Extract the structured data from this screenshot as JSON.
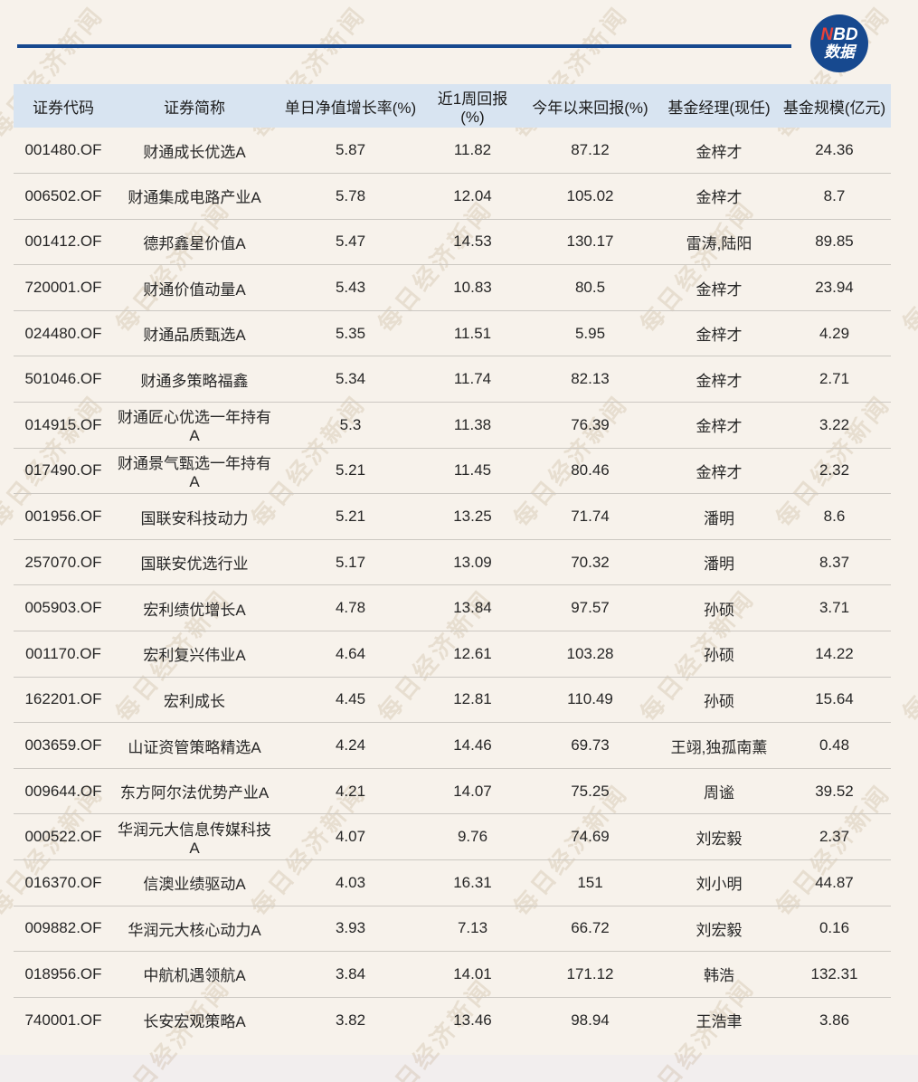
{
  "logo": {
    "nbd_n": "N",
    "nbd_bd": "BD",
    "line2": "数据"
  },
  "watermark": {
    "text": "每日经济新闻"
  },
  "colors": {
    "page_background": "#f7f2eb",
    "header_background": "#d8e4f1",
    "accent_blue": "#17498f",
    "logo_red": "#e8413a",
    "separator": "#ccc8c2",
    "text": "#262626"
  },
  "chart_data": {
    "type": "table",
    "title": "",
    "columns": [
      "证券代码",
      "证券简称",
      "单日净值增长率(%)",
      "近1周回报(%)",
      "今年以来回报(%)",
      "基金经理(现任)",
      "基金规模(亿元)"
    ],
    "rows": [
      [
        "001480.OF",
        "财通成长优选A",
        "5.87",
        "11.82",
        "87.12",
        "金梓才",
        "24.36"
      ],
      [
        "006502.OF",
        "财通集成电路产业A",
        "5.78",
        "12.04",
        "105.02",
        "金梓才",
        "8.7"
      ],
      [
        "001412.OF",
        "德邦鑫星价值A",
        "5.47",
        "14.53",
        "130.17",
        "雷涛,陆阳",
        "89.85"
      ],
      [
        "720001.OF",
        "财通价值动量A",
        "5.43",
        "10.83",
        "80.5",
        "金梓才",
        "23.94"
      ],
      [
        "024480.OF",
        "财通品质甄选A",
        "5.35",
        "11.51",
        "5.95",
        "金梓才",
        "4.29"
      ],
      [
        "501046.OF",
        "财通多策略福鑫",
        "5.34",
        "11.74",
        "82.13",
        "金梓才",
        "2.71"
      ],
      [
        "014915.OF",
        "财通匠心优选一年持有A",
        "5.3",
        "11.38",
        "76.39",
        "金梓才",
        "3.22"
      ],
      [
        "017490.OF",
        "财通景气甄选一年持有A",
        "5.21",
        "11.45",
        "80.46",
        "金梓才",
        "2.32"
      ],
      [
        "001956.OF",
        "国联安科技动力",
        "5.21",
        "13.25",
        "71.74",
        "潘明",
        "8.6"
      ],
      [
        "257070.OF",
        "国联安优选行业",
        "5.17",
        "13.09",
        "70.32",
        "潘明",
        "8.37"
      ],
      [
        "005903.OF",
        "宏利绩优增长A",
        "4.78",
        "13.84",
        "97.57",
        "孙硕",
        "3.71"
      ],
      [
        "001170.OF",
        "宏利复兴伟业A",
        "4.64",
        "12.61",
        "103.28",
        "孙硕",
        "14.22"
      ],
      [
        "162201.OF",
        "宏利成长",
        "4.45",
        "12.81",
        "110.49",
        "孙硕",
        "15.64"
      ],
      [
        "003659.OF",
        "山证资管策略精选A",
        "4.24",
        "14.46",
        "69.73",
        "王翊,独孤南薰",
        "0.48"
      ],
      [
        "009644.OF",
        "东方阿尔法优势产业A",
        "4.21",
        "14.07",
        "75.25",
        "周谧",
        "39.52"
      ],
      [
        "000522.OF",
        "华润元大信息传媒科技A",
        "4.07",
        "9.76",
        "74.69",
        "刘宏毅",
        "2.37"
      ],
      [
        "016370.OF",
        "信澳业绩驱动A",
        "4.03",
        "16.31",
        "151",
        "刘小明",
        "44.87"
      ],
      [
        "009882.OF",
        "华润元大核心动力A",
        "3.93",
        "7.13",
        "66.72",
        "刘宏毅",
        "0.16"
      ],
      [
        "018956.OF",
        "中航机遇领航A",
        "3.84",
        "14.01",
        "171.12",
        "韩浩",
        "132.31"
      ],
      [
        "740001.OF",
        "长安宏观策略A",
        "3.82",
        "13.46",
        "98.94",
        "王浩聿",
        "3.86"
      ]
    ]
  }
}
